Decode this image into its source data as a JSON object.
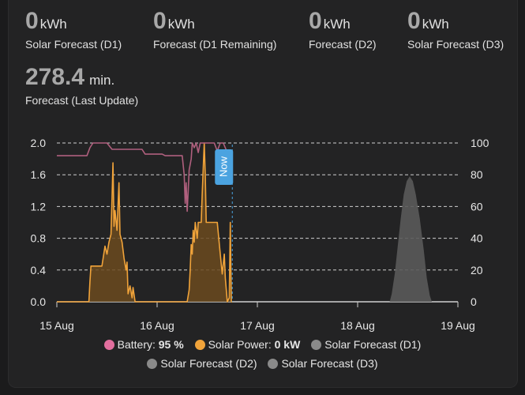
{
  "stats": [
    {
      "value": "0",
      "unit": "kWh",
      "label": "Solar Forecast (D1)"
    },
    {
      "value": "0",
      "unit": "kWh",
      "label": "Forecast (D1 Remaining)"
    },
    {
      "value": "0",
      "unit": "kWh",
      "label": "Forecast (D2)"
    },
    {
      "value": "0",
      "unit": "kWh",
      "label": "Solar Forecast (D3)"
    },
    {
      "value": "278.4",
      "unit": "min.",
      "label": "Forecast (Last Update)"
    }
  ],
  "now_label": "Now",
  "legend": [
    {
      "name": "Battery:",
      "value": "95 %",
      "color": "#e26f9e"
    },
    {
      "name": "Solar Power:",
      "value": "0 kW",
      "color": "#f0a33a"
    },
    {
      "name": "Solar Forecast (D1)",
      "value": "",
      "color": "#8a8a8a"
    },
    {
      "name": "Solar Forecast (D2)",
      "value": "",
      "color": "#8a8a8a"
    },
    {
      "name": "Solar Forecast (D3)",
      "value": "",
      "color": "#8a8a8a"
    }
  ],
  "colors": {
    "battery": "#b0607e",
    "solar": "#f0a33a",
    "forecast": "#5a5a5a",
    "now": "#4ba3e0"
  },
  "chart_data": {
    "type": "line",
    "x_ticks": [
      "15 Aug",
      "16 Aug",
      "17 Aug",
      "18 Aug",
      "19 Aug"
    ],
    "y_left_ticks": [
      "2.0",
      "1.6",
      "1.2",
      "0.8",
      "0.4",
      "0.0"
    ],
    "y_right_ticks": [
      "100",
      "80",
      "60",
      "40",
      "20",
      "0"
    ],
    "ylim_left": [
      0,
      2.0
    ],
    "ylim_right": [
      0,
      100
    ],
    "now_day": 16.75,
    "series": [
      {
        "name": "Battery",
        "axis": "right",
        "points": [
          [
            15.0,
            92
          ],
          [
            15.05,
            92
          ],
          [
            15.3,
            92
          ],
          [
            15.33,
            97
          ],
          [
            15.36,
            100
          ],
          [
            15.5,
            100
          ],
          [
            15.55,
            96
          ],
          [
            15.6,
            96
          ],
          [
            15.85,
            96
          ],
          [
            15.88,
            93
          ],
          [
            16.05,
            93
          ],
          [
            16.08,
            92
          ],
          [
            16.25,
            92
          ],
          [
            16.27,
            80
          ],
          [
            16.28,
            62
          ],
          [
            16.29,
            75
          ],
          [
            16.3,
            57
          ],
          [
            16.31,
            70
          ],
          [
            16.32,
            83
          ],
          [
            16.34,
            90
          ],
          [
            16.35,
            100
          ],
          [
            16.37,
            97
          ],
          [
            16.39,
            100
          ],
          [
            16.41,
            94
          ],
          [
            16.43,
            100
          ],
          [
            16.52,
            100
          ],
          [
            16.57,
            100
          ],
          [
            16.6,
            95
          ],
          [
            16.63,
            100
          ],
          [
            16.66,
            100
          ],
          [
            16.7,
            94
          ],
          [
            16.75,
            95
          ]
        ]
      },
      {
        "name": "Solar Power",
        "axis": "left",
        "points": [
          [
            15.0,
            0
          ],
          [
            15.32,
            0
          ],
          [
            15.33,
            0.25
          ],
          [
            15.34,
            0.45
          ],
          [
            15.45,
            0.45
          ],
          [
            15.48,
            0.7
          ],
          [
            15.5,
            0.6
          ],
          [
            15.52,
            0.75
          ],
          [
            15.54,
            0.85
          ],
          [
            15.55,
            1.3
          ],
          [
            15.56,
            1.75
          ],
          [
            15.57,
            0.95
          ],
          [
            15.58,
            1.15
          ],
          [
            15.6,
            0.9
          ],
          [
            15.62,
            1.5
          ],
          [
            15.63,
            0.85
          ],
          [
            15.65,
            0.75
          ],
          [
            15.67,
            0.55
          ],
          [
            15.69,
            0.4
          ],
          [
            15.7,
            0.5
          ],
          [
            15.71,
            0.1
          ],
          [
            15.73,
            0.2
          ],
          [
            15.75,
            0.05
          ],
          [
            15.76,
            0.18
          ],
          [
            15.78,
            0
          ],
          [
            16.0,
            0
          ],
          [
            16.3,
            0
          ],
          [
            16.32,
            0.15
          ],
          [
            16.33,
            0.4
          ],
          [
            16.34,
            0.72
          ],
          [
            16.35,
            0.6
          ],
          [
            16.36,
            0.9
          ],
          [
            16.37,
            0.75
          ],
          [
            16.38,
            1.0
          ],
          [
            16.4,
            0.8
          ],
          [
            16.41,
            1.0
          ],
          [
            16.44,
            1.0
          ],
          [
            16.45,
            1.35
          ],
          [
            16.47,
            2.0
          ],
          [
            16.48,
            1.6
          ],
          [
            16.49,
            1.0
          ],
          [
            16.6,
            1.0
          ],
          [
            16.63,
            0.6
          ],
          [
            16.65,
            0.35
          ],
          [
            16.67,
            0.6
          ],
          [
            16.68,
            0.3
          ],
          [
            16.7,
            0.0
          ],
          [
            16.72,
            0.05
          ],
          [
            16.73,
            1.0
          ],
          [
            16.74,
            0.0
          ],
          [
            16.75,
            0
          ]
        ]
      },
      {
        "name": "Solar Forecast (D2)",
        "axis": "left",
        "points": [
          [
            18.32,
            0
          ],
          [
            18.34,
            0.1
          ],
          [
            18.37,
            0.35
          ],
          [
            18.4,
            0.7
          ],
          [
            18.43,
            1.05
          ],
          [
            18.46,
            1.35
          ],
          [
            18.49,
            1.52
          ],
          [
            18.52,
            1.58
          ],
          [
            18.55,
            1.52
          ],
          [
            18.58,
            1.35
          ],
          [
            18.62,
            1.05
          ],
          [
            18.66,
            0.65
          ],
          [
            18.69,
            0.3
          ],
          [
            18.72,
            0.08
          ],
          [
            18.74,
            0
          ]
        ]
      }
    ]
  }
}
